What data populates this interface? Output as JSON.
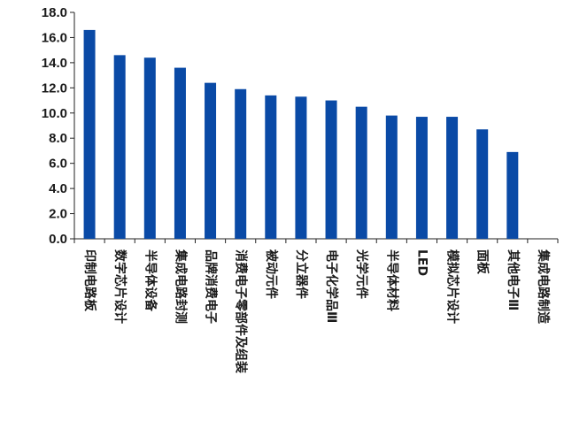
{
  "chart_data": {
    "type": "bar",
    "title": "",
    "xlabel": "",
    "ylabel": "",
    "ylim": [
      0,
      18
    ],
    "yticks": [
      "0.0",
      "2.0",
      "4.0",
      "6.0",
      "8.0",
      "10.0",
      "12.0",
      "14.0",
      "16.0",
      "18.0"
    ],
    "grid": false,
    "bar_color": "#0a4aa6",
    "categories": [
      "印制电路板",
      "数字芯片设计",
      "半导体设备",
      "集成电路封测",
      "品牌消费电子",
      "消费电子零部件及组装",
      "被动元件",
      "分立器件",
      "电子化学品Ⅲ",
      "光学元件",
      "半导体材料",
      "LED",
      "模拟芯片设计",
      "面板",
      "其他电子Ⅲ",
      "集成电路制造"
    ],
    "values": [
      16.6,
      14.6,
      14.4,
      13.6,
      12.4,
      11.9,
      11.4,
      11.3,
      11.0,
      10.5,
      9.8,
      9.7,
      9.7,
      8.7,
      6.9,
      0
    ]
  }
}
